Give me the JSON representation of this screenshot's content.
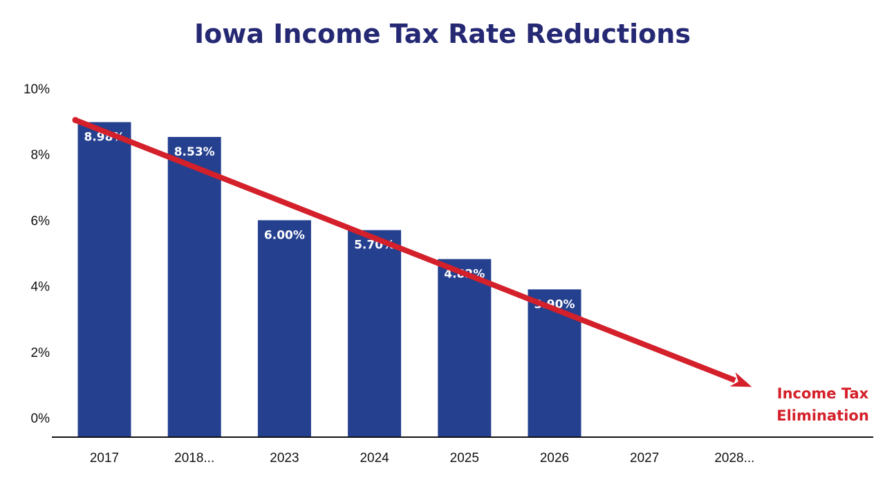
{
  "chart_data": {
    "type": "bar",
    "title": "Iowa Income Tax Rate Reductions",
    "categories": [
      "2017",
      "2018...",
      "2023",
      "2024",
      "2025",
      "2026",
      "2027",
      "2028..."
    ],
    "values": [
      8.98,
      8.53,
      6.0,
      5.7,
      4.82,
      3.9,
      null,
      null
    ],
    "data_labels": [
      "8.98%",
      "8.53%",
      "6.00%",
      "5.70%",
      "4.82%",
      "3.90%",
      "",
      ""
    ],
    "y_ticks": [
      "0%",
      "2%",
      "4%",
      "6%",
      "8%",
      "10%"
    ],
    "y_tick_values": [
      0,
      2,
      4,
      6,
      8,
      10
    ],
    "ylim": [
      0,
      10
    ],
    "xlabel": "",
    "ylabel": "",
    "grid": false,
    "legend": "none",
    "trend_arrow": {
      "from_value": 9.0,
      "to_value": 1.0,
      "to_category_index": 7
    },
    "annotation": [
      "Income Tax",
      "Elimination"
    ]
  },
  "colors": {
    "title": "#252873",
    "bar": "#25408F",
    "arrow": "#D4202A",
    "axis": "#111111"
  }
}
